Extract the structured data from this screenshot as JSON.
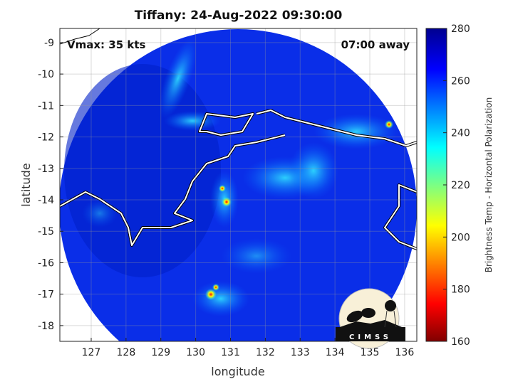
{
  "chart_data": {
    "type": "heatmap",
    "title": "Tiffany: 24-Aug-2022 09:30:00",
    "xlabel": "longitude",
    "ylabel": "latitude",
    "xlim": [
      126.1,
      136.35
    ],
    "ylim": [
      -18.5,
      -8.55
    ],
    "xticks": [
      "127",
      "128",
      "129",
      "130",
      "131",
      "132",
      "133",
      "134",
      "135",
      "136"
    ],
    "yticks": [
      "-9",
      "-10",
      "-11",
      "-12",
      "-13",
      "-14",
      "-15",
      "-16",
      "-17",
      "-18"
    ],
    "grid": true,
    "annotations": {
      "vmax": "Vmax: 35 kts",
      "time_away": "07:00 away"
    },
    "colorbar": {
      "label": "Brightness Temp - Horizontal Polarization",
      "range": [
        160,
        280
      ],
      "ticks": [
        "160",
        "180",
        "200",
        "220",
        "240",
        "260",
        "280"
      ],
      "colormap": "jet",
      "placement": "right"
    },
    "logo": "CIMSS"
  }
}
